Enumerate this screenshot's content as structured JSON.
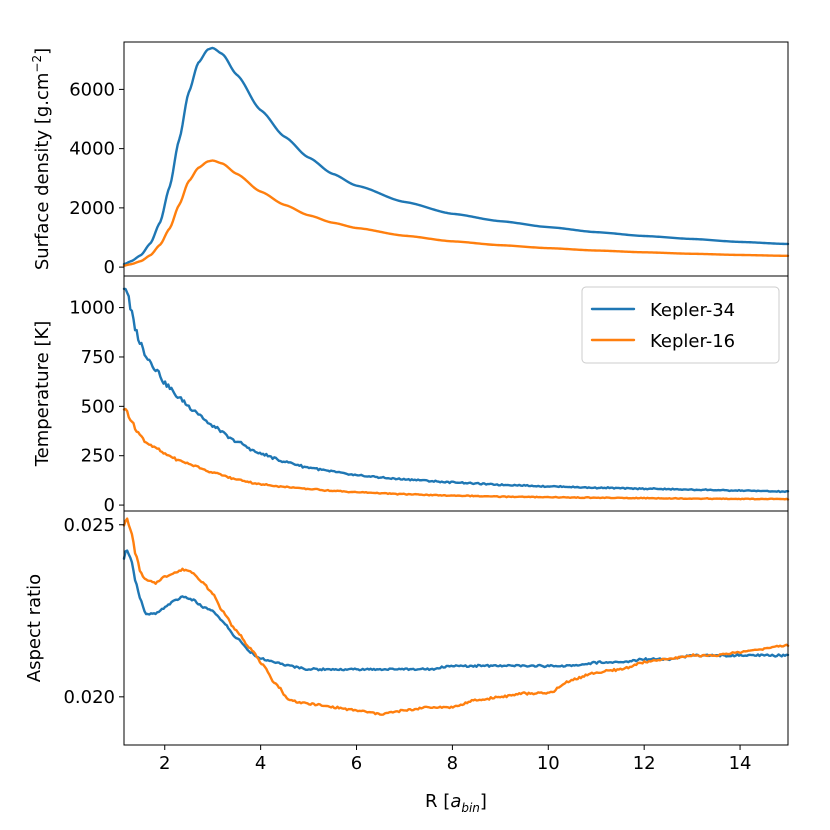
{
  "chart_data": [
    {
      "type": "line",
      "panel": "top",
      "ylabel": "Surface density [g.cm",
      "ylabel_sup": "−2",
      "ylabel_end": "]",
      "xlim": [
        1.15,
        15
      ],
      "ylim": [
        -300,
        7600
      ],
      "yticks": [
        0,
        2000,
        4000,
        6000
      ],
      "series": [
        {
          "name": "Kepler-34",
          "color": "#1f77b4",
          "x": [
            1.15,
            1.3,
            1.5,
            1.7,
            1.9,
            2.1,
            2.3,
            2.5,
            2.7,
            2.9,
            3.0,
            3.2,
            3.5,
            4.0,
            4.5,
            5.0,
            5.5,
            6.0,
            7.0,
            8.0,
            9.0,
            10.0,
            11.0,
            12.0,
            13.0,
            14.0,
            15.0
          ],
          "y": [
            100,
            200,
            400,
            800,
            1500,
            2700,
            4300,
            5900,
            6900,
            7350,
            7400,
            7200,
            6500,
            5300,
            4400,
            3700,
            3150,
            2750,
            2200,
            1800,
            1550,
            1350,
            1180,
            1050,
            950,
            850,
            780
          ]
        },
        {
          "name": "Kepler-16",
          "color": "#ff7f0e",
          "x": [
            1.15,
            1.3,
            1.5,
            1.7,
            1.9,
            2.1,
            2.3,
            2.5,
            2.7,
            2.9,
            3.0,
            3.2,
            3.5,
            4.0,
            4.5,
            5.0,
            5.5,
            6.0,
            7.0,
            8.0,
            9.0,
            10.0,
            11.0,
            12.0,
            13.0,
            14.0,
            15.0
          ],
          "y": [
            50,
            100,
            200,
            400,
            750,
            1300,
            2100,
            2900,
            3350,
            3570,
            3600,
            3500,
            3150,
            2550,
            2100,
            1750,
            1500,
            1320,
            1060,
            870,
            740,
            640,
            560,
            500,
            450,
            410,
            380
          ]
        }
      ]
    },
    {
      "type": "line",
      "panel": "middle",
      "ylabel": "Temperature [K]",
      "xlim": [
        1.15,
        15
      ],
      "ylim": [
        -30,
        1160
      ],
      "yticks": [
        0,
        250,
        500,
        750,
        1000
      ],
      "legend": {
        "position": "top-right",
        "entries": [
          "Kepler-34",
          "Kepler-16"
        ]
      },
      "series": [
        {
          "name": "Kepler-34",
          "color": "#1f77b4",
          "x": [
            1.15,
            1.2,
            1.3,
            1.4,
            1.5,
            1.6,
            1.8,
            2.0,
            2.3,
            2.6,
            3.0,
            3.5,
            4.0,
            4.5,
            5.0,
            5.5,
            6.0,
            7.0,
            8.0,
            9.0,
            10.0,
            11.0,
            12.0,
            13.0,
            14.0,
            15.0
          ],
          "y": [
            1110,
            1090,
            980,
            880,
            820,
            760,
            690,
            620,
            540,
            480,
            400,
            320,
            260,
            220,
            190,
            170,
            150,
            130,
            115,
            103,
            95,
            88,
            83,
            78,
            73,
            68
          ]
        },
        {
          "name": "Kepler-16",
          "color": "#ff7f0e",
          "x": [
            1.15,
            1.2,
            1.3,
            1.4,
            1.5,
            1.6,
            1.8,
            2.0,
            2.3,
            2.6,
            3.0,
            3.5,
            4.0,
            4.5,
            5.0,
            5.5,
            6.0,
            7.0,
            8.0,
            9.0,
            10.0,
            11.0,
            12.0,
            13.0,
            14.0,
            15.0
          ],
          "y": [
            490,
            480,
            430,
            380,
            350,
            320,
            290,
            260,
            225,
            200,
            165,
            130,
            105,
            92,
            82,
            72,
            65,
            55,
            48,
            43,
            40,
            37,
            35,
            33,
            31,
            30
          ]
        }
      ]
    },
    {
      "type": "line",
      "panel": "bottom",
      "ylabel": "Aspect ratio",
      "xlabel": "R [",
      "xlabel_italic": "a",
      "xlabel_sub": "bin",
      "xlabel_end": "]",
      "xlim": [
        1.15,
        15
      ],
      "ylim": [
        0.0186,
        0.0254
      ],
      "yticks": [
        0.02,
        0.025
      ],
      "ytick_labels": [
        "0.020",
        "0.025"
      ],
      "xticks": [
        2,
        4,
        6,
        8,
        10,
        12,
        14
      ],
      "series": [
        {
          "name": "Kepler-34",
          "color": "#1f77b4",
          "x": [
            1.15,
            1.2,
            1.3,
            1.4,
            1.5,
            1.6,
            1.8,
            2.0,
            2.2,
            2.4,
            2.6,
            2.8,
            3.0,
            3.2,
            3.5,
            3.8,
            4.0,
            4.3,
            4.6,
            5.0,
            5.5,
            6.0,
            6.5,
            7.0,
            7.5,
            8.0,
            8.5,
            9.0,
            9.5,
            10.0,
            10.5,
            11.0,
            11.5,
            12.0,
            12.5,
            13.0,
            13.5,
            14.0,
            14.5,
            15.0
          ],
          "y": [
            0.024,
            0.0243,
            0.024,
            0.0233,
            0.0228,
            0.0224,
            0.0224,
            0.0226,
            0.0228,
            0.0229,
            0.0228,
            0.0226,
            0.0225,
            0.0222,
            0.0217,
            0.0213,
            0.0211,
            0.021,
            0.0209,
            0.0208,
            0.0208,
            0.0208,
            0.0208,
            0.0208,
            0.0208,
            0.0209,
            0.0209,
            0.0209,
            0.0209,
            0.0209,
            0.0209,
            0.021,
            0.021,
            0.0211,
            0.0211,
            0.0212,
            0.0212,
            0.0212,
            0.0212,
            0.0212
          ]
        },
        {
          "name": "Kepler-16",
          "color": "#ff7f0e",
          "x": [
            1.15,
            1.2,
            1.3,
            1.4,
            1.5,
            1.6,
            1.8,
            2.0,
            2.2,
            2.4,
            2.6,
            2.8,
            3.0,
            3.2,
            3.5,
            3.8,
            4.0,
            4.3,
            4.6,
            5.0,
            5.5,
            6.0,
            6.5,
            7.0,
            7.5,
            8.0,
            8.5,
            9.0,
            9.5,
            10.0,
            10.5,
            11.0,
            11.5,
            12.0,
            12.5,
            13.0,
            13.5,
            14.0,
            14.5,
            15.0
          ],
          "y": [
            0.025,
            0.0252,
            0.0248,
            0.0241,
            0.0236,
            0.0234,
            0.0233,
            0.0235,
            0.0236,
            0.0237,
            0.0236,
            0.0233,
            0.023,
            0.0225,
            0.0219,
            0.0214,
            0.021,
            0.0204,
            0.0199,
            0.0198,
            0.0197,
            0.0196,
            0.0195,
            0.0196,
            0.0197,
            0.0197,
            0.0199,
            0.02,
            0.0201,
            0.0201,
            0.0205,
            0.0207,
            0.0208,
            0.021,
            0.0211,
            0.0212,
            0.0212,
            0.0213,
            0.0214,
            0.0215
          ]
        }
      ]
    }
  ]
}
